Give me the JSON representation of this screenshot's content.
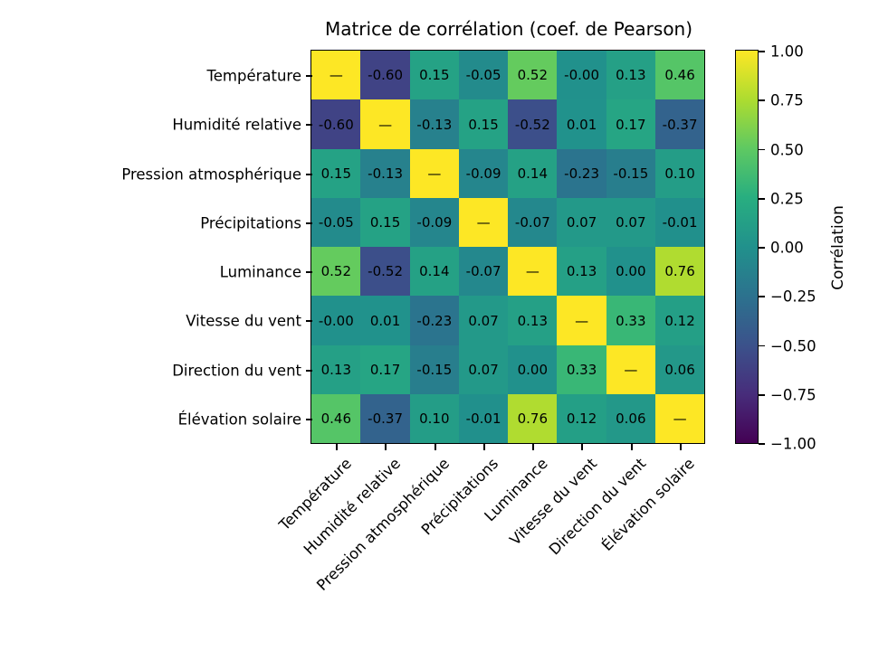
{
  "title": "Matrice de corrélation (coef. de Pearson)",
  "chart_data": {
    "type": "heatmap",
    "title": "Matrice de corrélation (coef. de Pearson)",
    "categories": [
      "Température",
      "Humidité relative",
      "Pression atmosphérique",
      "Précipitations",
      "Luminance",
      "Vitesse du vent",
      "Direction du vent",
      "Élévation solaire"
    ],
    "matrix": [
      [
        null,
        -0.6,
        0.15,
        -0.05,
        0.52,
        -0.0,
        0.13,
        0.46
      ],
      [
        -0.6,
        null,
        -0.13,
        0.15,
        -0.52,
        0.01,
        0.17,
        -0.37
      ],
      [
        0.15,
        -0.13,
        null,
        -0.09,
        0.14,
        -0.23,
        -0.15,
        0.1
      ],
      [
        -0.05,
        0.15,
        -0.09,
        null,
        -0.07,
        0.07,
        0.07,
        -0.01
      ],
      [
        0.52,
        -0.52,
        0.14,
        -0.07,
        null,
        0.13,
        0.0,
        0.76
      ],
      [
        -0.0,
        0.01,
        -0.23,
        0.07,
        0.13,
        null,
        0.33,
        0.12
      ],
      [
        0.13,
        0.17,
        -0.15,
        0.07,
        0.0,
        0.33,
        null,
        0.06
      ],
      [
        0.46,
        -0.37,
        0.1,
        -0.01,
        0.76,
        0.12,
        0.06,
        null
      ]
    ],
    "cell_labels": [
      [
        "—",
        "-0.60",
        "0.15",
        "-0.05",
        "0.52",
        "-0.00",
        "0.13",
        "0.46"
      ],
      [
        "-0.60",
        "—",
        "-0.13",
        "0.15",
        "-0.52",
        "0.01",
        "0.17",
        "-0.37"
      ],
      [
        "0.15",
        "-0.13",
        "—",
        "-0.09",
        "0.14",
        "-0.23",
        "-0.15",
        "0.10"
      ],
      [
        "-0.05",
        "0.15",
        "-0.09",
        "—",
        "-0.07",
        "0.07",
        "0.07",
        "-0.01"
      ],
      [
        "0.52",
        "-0.52",
        "0.14",
        "-0.07",
        "—",
        "0.13",
        "0.00",
        "0.76"
      ],
      [
        "-0.00",
        "0.01",
        "-0.23",
        "0.07",
        "0.13",
        "—",
        "0.33",
        "0.12"
      ],
      [
        "0.13",
        "0.17",
        "-0.15",
        "0.07",
        "0.00",
        "0.33",
        "—",
        "0.06"
      ],
      [
        "0.46",
        "-0.37",
        "0.10",
        "-0.01",
        "0.76",
        "0.12",
        "0.06",
        "—"
      ]
    ],
    "vmin": -1,
    "vmax": 1,
    "colormap": "viridis",
    "colormap_stops": [
      "#440154",
      "#472d7b",
      "#3b528b",
      "#2c728e",
      "#21918c",
      "#28ae80",
      "#5ec962",
      "#addc30",
      "#fde725"
    ],
    "diagonal_color": "#fde725",
    "text_color": "#000000",
    "colorbar": {
      "label": "Corrélation",
      "ticks": [
        {
          "label": "1.00",
          "value": 1.0
        },
        {
          "label": "0.75",
          "value": 0.75
        },
        {
          "label": "0.50",
          "value": 0.5
        },
        {
          "label": "0.25",
          "value": 0.25
        },
        {
          "label": "0.00",
          "value": 0.0
        },
        {
          "label": "−0.25",
          "value": -0.25
        },
        {
          "label": "−0.50",
          "value": -0.5
        },
        {
          "label": "−0.75",
          "value": -0.75
        },
        {
          "label": "−1.00",
          "value": -1.0
        }
      ]
    }
  }
}
